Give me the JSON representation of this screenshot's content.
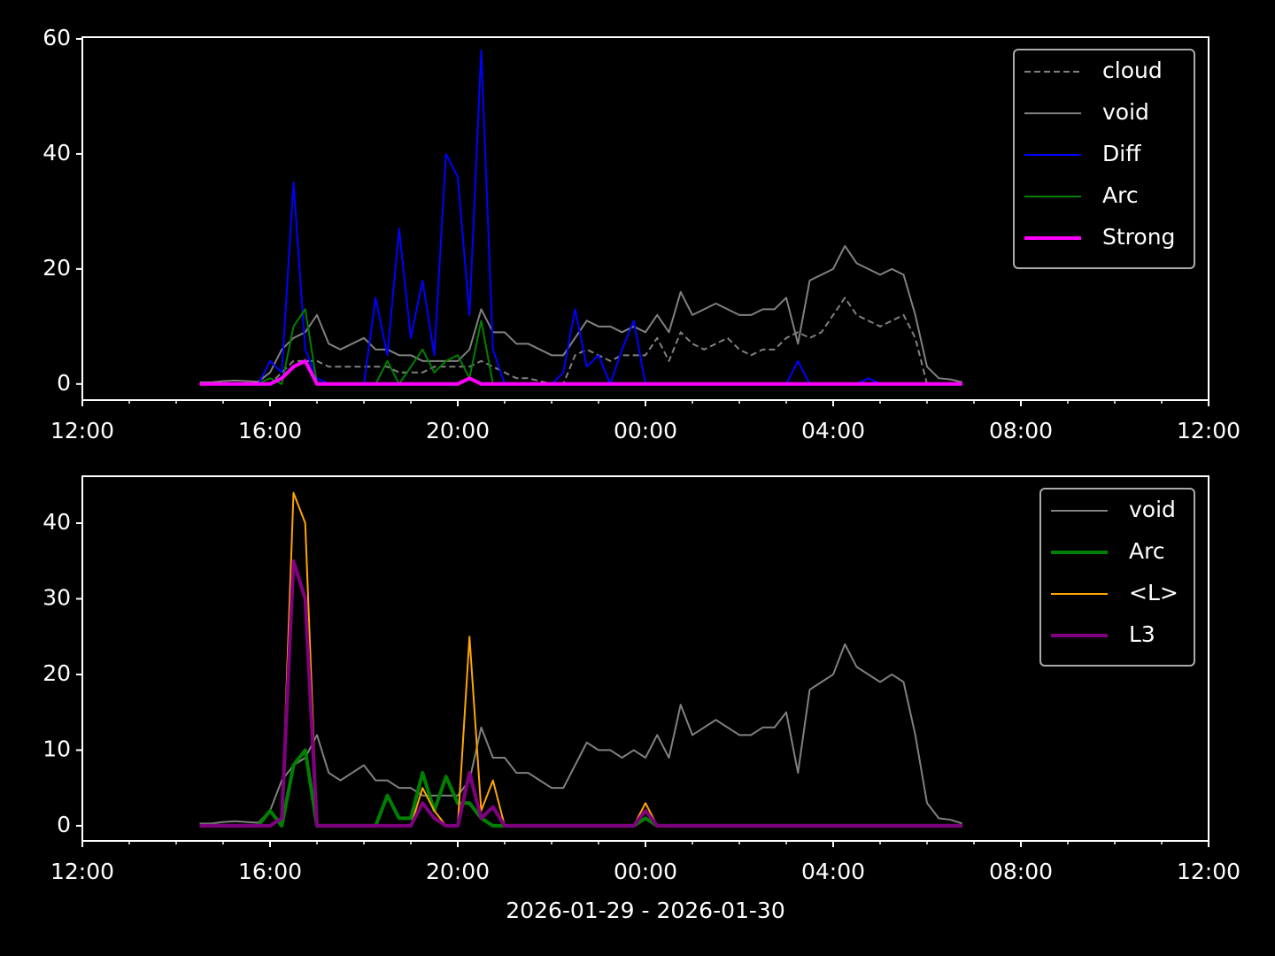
{
  "chart_data": [
    {
      "type": "line",
      "x": [
        14.5,
        14.75,
        15,
        15.25,
        15.5,
        15.75,
        16,
        16.25,
        16.5,
        16.75,
        17,
        17.25,
        17.5,
        17.75,
        18,
        18.25,
        18.5,
        18.75,
        19,
        19.25,
        19.5,
        19.75,
        20,
        20.25,
        20.5,
        20.75,
        21,
        21.25,
        21.5,
        21.75,
        22,
        22.25,
        22.5,
        22.75,
        23,
        23.25,
        23.5,
        23.75,
        24,
        24.25,
        24.5,
        24.75,
        25,
        25.25,
        25.5,
        25.75,
        26,
        26.25,
        26.5,
        26.75,
        27,
        27.25,
        27.5,
        27.75,
        28,
        28.25,
        28.5,
        28.75,
        29,
        29.25,
        29.5,
        29.75,
        30,
        30.25,
        30.5,
        30.75
      ],
      "xlim": [
        12,
        36
      ],
      "xticks": [
        {
          "value": 12,
          "label": "12:00"
        },
        {
          "value": 16,
          "label": "16:00"
        },
        {
          "value": 20,
          "label": "20:00"
        },
        {
          "value": 24,
          "label": "00:00"
        },
        {
          "value": 28,
          "label": "04:00"
        },
        {
          "value": 32,
          "label": "08:00"
        },
        {
          "value": 36,
          "label": "12:00"
        }
      ],
      "xminorticks": [
        13,
        14,
        15,
        17,
        18,
        19,
        21,
        22,
        23,
        25,
        26,
        27,
        29,
        30,
        31,
        33,
        34,
        35
      ],
      "ylim": [
        -2.8,
        60.3
      ],
      "yticks": [
        0,
        20,
        40,
        60
      ],
      "legend": "upper right",
      "series": [
        {
          "name": "cloud",
          "color": "#808080",
          "linestyle": "dashed",
          "linewidth": 2,
          "values": [
            0,
            0,
            0,
            0,
            0,
            0,
            0,
            2,
            4,
            4,
            4,
            3,
            3,
            3,
            3,
            3,
            3,
            2,
            2,
            2,
            3,
            3,
            3,
            3,
            4,
            3,
            2,
            1,
            1,
            0.5,
            0,
            0,
            5,
            6,
            5,
            4,
            5,
            5,
            5,
            8,
            4,
            9,
            7,
            6,
            7,
            8,
            6,
            5,
            6,
            6,
            8,
            9,
            8,
            9,
            12,
            15,
            12,
            11,
            10,
            11,
            12,
            8,
            0,
            0,
            0,
            0
          ]
        },
        {
          "name": "void",
          "color": "#808080",
          "linestyle": "solid",
          "linewidth": 2,
          "values": [
            0.3,
            0.3,
            0.5,
            0.6,
            0.5,
            0.4,
            2,
            6,
            8,
            9,
            12,
            7,
            6,
            7,
            8,
            6,
            6,
            5,
            5,
            4,
            4,
            4,
            4,
            6,
            13,
            9,
            9,
            7,
            7,
            6,
            5,
            5,
            8,
            11,
            10,
            10,
            9,
            10,
            9,
            12,
            9,
            16,
            12,
            13,
            14,
            13,
            12,
            12,
            13,
            13,
            15,
            7,
            18,
            19,
            20,
            24,
            21,
            20,
            19,
            20,
            19,
            12,
            3,
            1,
            0.8,
            0.3
          ]
        },
        {
          "name": "Diff",
          "color": "#0000ff",
          "linestyle": "solid",
          "linewidth": 2,
          "values": [
            0,
            0,
            0,
            0,
            0,
            0,
            4,
            2,
            35,
            6,
            1,
            0,
            0,
            0,
            0,
            15,
            5,
            27,
            8,
            18,
            5,
            40,
            36,
            12,
            58,
            6,
            0,
            0,
            0,
            0,
            0,
            2,
            13,
            3,
            5,
            0,
            6,
            11,
            0,
            0,
            0,
            0,
            0,
            0,
            0,
            0,
            0,
            0,
            0,
            0,
            0,
            4,
            0,
            0,
            0,
            0,
            0,
            1,
            0,
            0,
            0,
            0,
            0,
            0,
            0,
            0
          ]
        },
        {
          "name": "Arc",
          "color": "#008000",
          "linestyle": "solid",
          "linewidth": 2,
          "values": [
            0,
            0,
            0,
            0,
            0,
            0,
            1,
            0,
            10,
            13,
            0,
            0,
            0,
            0,
            0,
            0,
            4,
            0,
            3,
            6,
            2,
            4,
            5,
            1,
            11,
            0,
            0,
            0,
            0,
            0,
            0,
            0,
            0,
            0,
            0,
            0,
            0,
            0,
            0,
            0,
            0,
            0,
            0,
            0,
            0,
            0,
            0,
            0,
            0,
            0,
            0,
            0,
            0,
            0,
            0,
            0,
            0,
            0,
            0,
            0,
            0,
            0,
            0,
            0,
            0,
            0
          ]
        },
        {
          "name": "Strong",
          "color": "#ff00ff",
          "linestyle": "solid",
          "linewidth": 4,
          "values": [
            0,
            0,
            0,
            0,
            0,
            0,
            0,
            1,
            3,
            4,
            0,
            0,
            0,
            0,
            0,
            0,
            0,
            0,
            0,
            0,
            0,
            0,
            0,
            1,
            0,
            0,
            0,
            0,
            0,
            0,
            0,
            0,
            0,
            0,
            0,
            0,
            0,
            0,
            0,
            0,
            0,
            0,
            0,
            0,
            0,
            0,
            0,
            0,
            0,
            0,
            0,
            0,
            0,
            0,
            0,
            0,
            0,
            0,
            0,
            0,
            0,
            0,
            0,
            0,
            0,
            0
          ]
        }
      ]
    },
    {
      "type": "line",
      "x": [
        14.5,
        14.75,
        15,
        15.25,
        15.5,
        15.75,
        16,
        16.25,
        16.5,
        16.75,
        17,
        17.25,
        17.5,
        17.75,
        18,
        18.25,
        18.5,
        18.75,
        19,
        19.25,
        19.5,
        19.75,
        20,
        20.25,
        20.5,
        20.75,
        21,
        21.25,
        21.5,
        21.75,
        22,
        22.25,
        22.5,
        22.75,
        23,
        23.25,
        23.5,
        23.75,
        24,
        24.25,
        24.5,
        24.75,
        25,
        25.25,
        25.5,
        25.75,
        26,
        26.25,
        26.5,
        26.75,
        27,
        27.25,
        27.5,
        27.75,
        28,
        28.25,
        28.5,
        28.75,
        29,
        29.25,
        29.5,
        29.75,
        30,
        30.25,
        30.5,
        30.75
      ],
      "xlim": [
        12,
        36
      ],
      "xticks": [
        {
          "value": 12,
          "label": "12:00"
        },
        {
          "value": 16,
          "label": "16:00"
        },
        {
          "value": 20,
          "label": "20:00"
        },
        {
          "value": 24,
          "label": "00:00"
        },
        {
          "value": 28,
          "label": "04:00"
        },
        {
          "value": 32,
          "label": "08:00"
        },
        {
          "value": 36,
          "label": "12:00"
        }
      ],
      "xminorticks": [
        13,
        14,
        15,
        17,
        18,
        19,
        21,
        22,
        23,
        25,
        26,
        27,
        29,
        30,
        31,
        33,
        34,
        35
      ],
      "xlabel": "2026-01-29 - 2026-01-30",
      "ylim": [
        -2,
        46.2
      ],
      "yticks": [
        0,
        10,
        20,
        30,
        40
      ],
      "legend": "upper right",
      "series": [
        {
          "name": "void",
          "color": "#808080",
          "linestyle": "solid",
          "linewidth": 2,
          "values": [
            0.3,
            0.3,
            0.5,
            0.6,
            0.5,
            0.4,
            2,
            6,
            8,
            9,
            12,
            7,
            6,
            7,
            8,
            6,
            6,
            5,
            5,
            4,
            4,
            4,
            4,
            6,
            13,
            9,
            9,
            7,
            7,
            6,
            5,
            5,
            8,
            11,
            10,
            10,
            9,
            10,
            9,
            12,
            9,
            16,
            12,
            13,
            14,
            13,
            12,
            12,
            13,
            13,
            15,
            7,
            18,
            19,
            20,
            24,
            21,
            20,
            19,
            20,
            19,
            12,
            3,
            1,
            0.8,
            0.3
          ]
        },
        {
          "name": "Arc",
          "color": "#008000",
          "linestyle": "solid",
          "linewidth": 4,
          "values": [
            0,
            0,
            0,
            0,
            0,
            0,
            2,
            0,
            8,
            10,
            0,
            0,
            0,
            0,
            0,
            0,
            4,
            1,
            1,
            7,
            2,
            6.5,
            3,
            3,
            1,
            0,
            0,
            0,
            0,
            0,
            0,
            0,
            0,
            0,
            0,
            0,
            0,
            0,
            1,
            0,
            0,
            0,
            0,
            0,
            0,
            0,
            0,
            0,
            0,
            0,
            0,
            0,
            0,
            0,
            0,
            0,
            0,
            0,
            0,
            0,
            0,
            0,
            0,
            0,
            0,
            0
          ]
        },
        {
          "name": "<L>",
          "color": "#ffa500",
          "linestyle": "solid",
          "linewidth": 2,
          "values": [
            0,
            0,
            0,
            0,
            0,
            0,
            0,
            1,
            44,
            40,
            0,
            0,
            0,
            0,
            0,
            0,
            0,
            0,
            0,
            5,
            2,
            0,
            0,
            25,
            2,
            6,
            0,
            0,
            0,
            0,
            0,
            0,
            0,
            0,
            0,
            0,
            0,
            0,
            3,
            0,
            0,
            0,
            0,
            0,
            0,
            0,
            0,
            0,
            0,
            0,
            0,
            0,
            0,
            0,
            0,
            0,
            0,
            0,
            0,
            0,
            0,
            0,
            0,
            0,
            0,
            0
          ]
        },
        {
          "name": "L3",
          "color": "#800080",
          "linestyle": "solid",
          "linewidth": 4,
          "values": [
            0,
            0,
            0,
            0,
            0,
            0,
            0,
            1,
            35,
            30,
            0,
            0,
            0,
            0,
            0,
            0,
            0,
            0,
            0,
            3,
            1,
            0,
            0,
            7,
            1,
            2.5,
            0,
            0,
            0,
            0,
            0,
            0,
            0,
            0,
            0,
            0,
            0,
            0,
            2,
            0,
            0,
            0,
            0,
            0,
            0,
            0,
            0,
            0,
            0,
            0,
            0,
            0,
            0,
            0,
            0,
            0,
            0,
            0,
            0,
            0,
            0,
            0,
            0,
            0,
            0,
            0
          ]
        }
      ]
    }
  ]
}
